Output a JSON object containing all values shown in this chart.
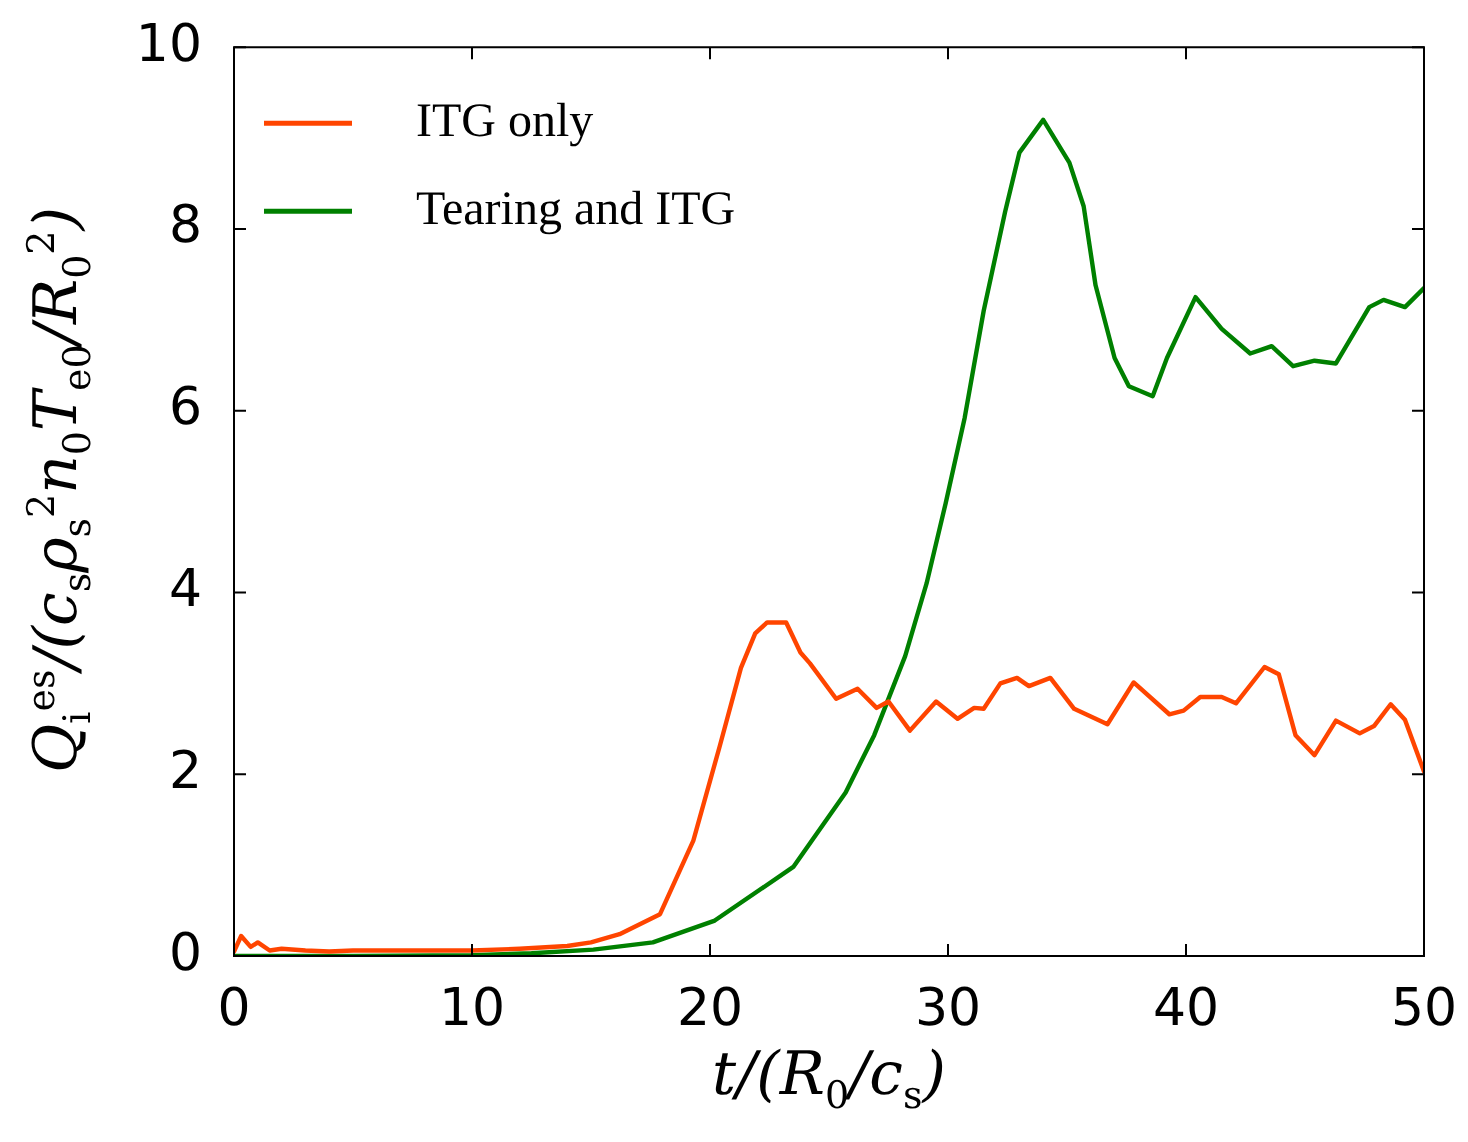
{
  "chart_data": {
    "type": "line",
    "xlabel": "t/(R$_{0}$/c$_{s}$)",
    "ylabel": "Q$_{i}$$^{es}$/(c$_{s}$ρ$_{s}$$^{2}$n$_{0}$T$_{e0}$/R$_{0}$$^{2}$)",
    "xlim": [
      0,
      50
    ],
    "xticks": [
      0,
      10,
      20,
      30,
      40,
      50
    ],
    "ylim": [
      0,
      10
    ],
    "yticks": [
      0,
      2,
      4,
      6,
      8,
      10
    ],
    "grid": false,
    "legend": "top left",
    "marker": "none",
    "line_style": "solid",
    "series": [
      {
        "name": "ITG only",
        "color": "#ff4500",
        "x": [
          0,
          0.3,
          0.7,
          1,
          1.5,
          2,
          3,
          4,
          5,
          7,
          10,
          12,
          14,
          15,
          16.2,
          17.9,
          19.3,
          20.4,
          21.3,
          21.9,
          22.4,
          23.2,
          23.8,
          24.2,
          25.3,
          26.2,
          27.0,
          27.5,
          28.4,
          29.5,
          30.4,
          31.1,
          31.5,
          32.2,
          32.9,
          33.4,
          34.3,
          35.3,
          36.7,
          37.8,
          39.3,
          39.9,
          40.6,
          41.5,
          42.1,
          43.3,
          43.9,
          44.6,
          45.4,
          46.3,
          47.3,
          47.9,
          48.6,
          49.2,
          50
        ],
        "values": [
          0.05,
          0.22,
          0.1,
          0.15,
          0.06,
          0.08,
          0.06,
          0.05,
          0.06,
          0.06,
          0.06,
          0.08,
          0.11,
          0.15,
          0.24,
          0.46,
          1.27,
          2.3,
          3.17,
          3.55,
          3.67,
          3.67,
          3.34,
          3.22,
          2.83,
          2.94,
          2.73,
          2.8,
          2.48,
          2.8,
          2.61,
          2.73,
          2.72,
          3.0,
          3.06,
          2.97,
          3.06,
          2.72,
          2.55,
          3.01,
          2.66,
          2.7,
          2.85,
          2.85,
          2.78,
          3.18,
          3.1,
          2.43,
          2.21,
          2.59,
          2.45,
          2.53,
          2.77,
          2.6,
          2.03
        ]
      },
      {
        "name": "Tearing and ITG",
        "color": "#008000",
        "x": [
          0,
          5,
          10,
          12.5,
          15.1,
          17.6,
          20.2,
          23.5,
          25.7,
          26.9,
          28.2,
          29.1,
          29.9,
          30.7,
          31.5,
          32.4,
          33.0,
          34.0,
          35.1,
          35.7,
          36.2,
          37.0,
          37.6,
          38.6,
          39.2,
          40.4,
          41.5,
          42.7,
          43.6,
          44.5,
          45.4,
          46.3,
          47.7,
          48.3,
          49.2,
          50
        ],
        "values": [
          0.0,
          0.0,
          0.01,
          0.03,
          0.07,
          0.15,
          0.39,
          0.98,
          1.8,
          2.43,
          3.3,
          4.1,
          4.98,
          5.92,
          7.1,
          8.19,
          8.84,
          9.2,
          8.73,
          8.25,
          7.38,
          6.58,
          6.27,
          6.16,
          6.58,
          7.25,
          6.9,
          6.63,
          6.71,
          6.49,
          6.55,
          6.52,
          7.14,
          7.22,
          7.14,
          7.35
        ]
      }
    ]
  }
}
